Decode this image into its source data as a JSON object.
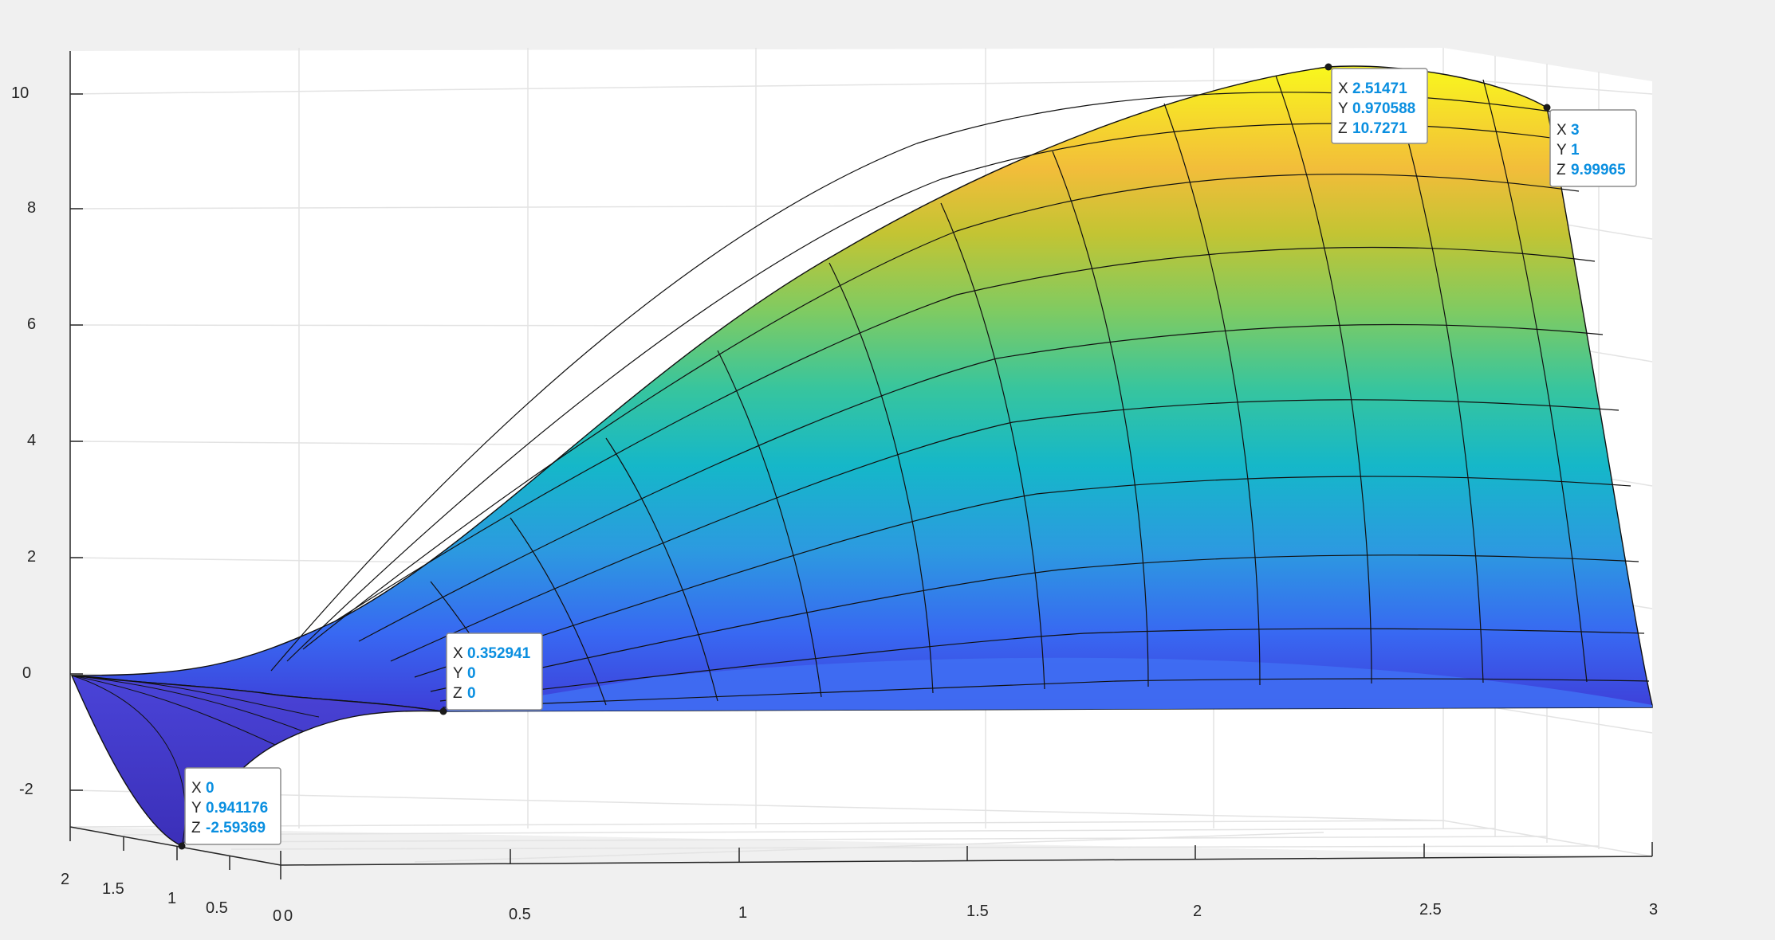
{
  "chart_data": {
    "type": "surface",
    "title": "",
    "xlabel": "",
    "ylabel": "",
    "zlabel": "",
    "xlim": [
      0,
      3
    ],
    "ylim": [
      0,
      2
    ],
    "zlim": [
      -3,
      10.5
    ],
    "grid": true,
    "colormap": "parula",
    "x_ticks": [
      "0",
      "0.5",
      "1",
      "1.5",
      "2",
      "2.5",
      "3"
    ],
    "y_ticks": [
      "0",
      "0.5",
      "1",
      "1.5",
      "2"
    ],
    "z_ticks": [
      "-2",
      "0",
      "2",
      "4",
      "6",
      "8",
      "10"
    ],
    "datatips": [
      {
        "x": "2.51471",
        "y": "0.970588",
        "z": "10.7271"
      },
      {
        "x": "3",
        "y": "1",
        "z": "9.99965"
      },
      {
        "x": "0.352941",
        "y": "0",
        "z": "0"
      },
      {
        "x": "0",
        "y": "0.941176",
        "z": "-2.59369"
      }
    ]
  },
  "colors": {
    "background": "#f0f0f0",
    "axes_bg": "#ffffff",
    "grid": "#e3e3e3",
    "axis_line": "#262626",
    "datatip_value": "#0a8fe0"
  }
}
